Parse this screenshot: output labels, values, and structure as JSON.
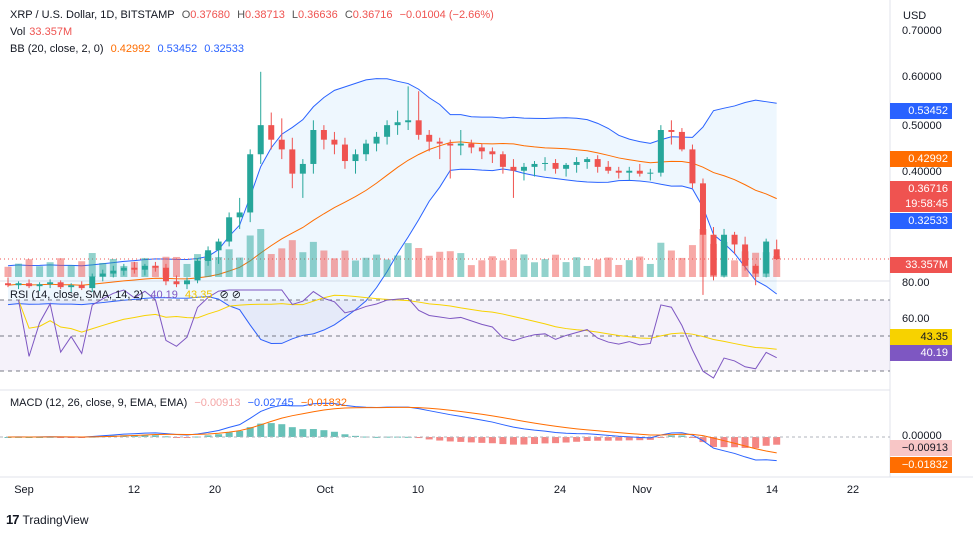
{
  "header": {
    "symbol_line": "XRP / U.S. Dollar, 1D, BITSTAMP",
    "ohlc": {
      "o_label": "O",
      "o": "0.37680",
      "h_label": "H",
      "h": "0.38713",
      "l_label": "L",
      "l": "0.36636",
      "c_label": "C",
      "c": "0.36716",
      "change": "−0.01004 (−2.66%)"
    },
    "vol_label": "Vol",
    "vol_value": "33.357M",
    "bb_label": "BB (20, close, 2, 0)",
    "bb_values": [
      "0.42992",
      "0.53452",
      "0.32533"
    ]
  },
  "rsi_legend": {
    "label": "RSI (14, close, SMA, 14, 2)",
    "values": [
      "40.19",
      "43.35"
    ],
    "extra": "⊘ ⊘"
  },
  "macd_legend": {
    "label": "MACD (12, 26, close, 9, EMA, EMA)",
    "values": [
      "−0.00913",
      "−0.02745",
      "−0.01832"
    ]
  },
  "price_axis": {
    "currency": "USD",
    "ticks": [
      "0.70000",
      "0.60000",
      "0.50000",
      "0.40000"
    ]
  },
  "rsi_axis": {
    "ticks": [
      "80.00",
      "60.00"
    ]
  },
  "macd_axis": {
    "ticks": [
      "0.00000"
    ]
  },
  "badges": {
    "bb_upper": "0.53452",
    "bb_basis": "0.42992",
    "last_price": "0.36716",
    "countdown": "19:58:45",
    "bb_lower": "0.32533",
    "volume": "33.357M",
    "rsi_sma": "43.35",
    "rsi": "40.19",
    "macd_hist": "−0.00913",
    "macd_signal": "−0.01832"
  },
  "x_axis": {
    "labels": [
      "Sep",
      "12",
      "20",
      "Oct",
      "10",
      "24",
      "Nov",
      "14",
      "22"
    ]
  },
  "brand": {
    "logo": "17",
    "name": "TradingView"
  },
  "colors": {
    "up": "#26a69a",
    "down": "#ef5350",
    "bb_band": "#2962ff",
    "bb_basis": "#ff6d00",
    "rsi": "#7e57c2",
    "rsi_sma": "#f7d200"
  },
  "chart_data": {
    "type": "candlestick",
    "title": "XRP / U.S. Dollar, 1D, BITSTAMP",
    "ylim": [
      0.3,
      0.72
    ],
    "candles": [
      [
        0.342,
        0.348,
        0.338,
        0.34
      ],
      [
        0.34,
        0.344,
        0.336,
        0.342
      ],
      [
        0.342,
        0.346,
        0.337,
        0.339
      ],
      [
        0.339,
        0.343,
        0.334,
        0.341
      ],
      [
        0.341,
        0.346,
        0.337,
        0.343
      ],
      [
        0.343,
        0.345,
        0.336,
        0.338
      ],
      [
        0.338,
        0.342,
        0.333,
        0.34
      ],
      [
        0.34,
        0.344,
        0.335,
        0.337
      ],
      [
        0.337,
        0.352,
        0.333,
        0.349
      ],
      [
        0.349,
        0.356,
        0.344,
        0.352
      ],
      [
        0.352,
        0.36,
        0.348,
        0.355
      ],
      [
        0.355,
        0.362,
        0.35,
        0.358
      ],
      [
        0.358,
        0.364,
        0.352,
        0.356
      ],
      [
        0.356,
        0.362,
        0.35,
        0.36
      ],
      [
        0.36,
        0.364,
        0.354,
        0.358
      ],
      [
        0.358,
        0.362,
        0.34,
        0.344
      ],
      [
        0.344,
        0.35,
        0.338,
        0.341
      ],
      [
        0.341,
        0.348,
        0.336,
        0.345
      ],
      [
        0.345,
        0.368,
        0.342,
        0.365
      ],
      [
        0.365,
        0.38,
        0.36,
        0.376
      ],
      [
        0.376,
        0.388,
        0.362,
        0.385
      ],
      [
        0.385,
        0.415,
        0.38,
        0.41
      ],
      [
        0.41,
        0.43,
        0.398,
        0.415
      ],
      [
        0.415,
        0.48,
        0.405,
        0.475
      ],
      [
        0.475,
        0.56,
        0.465,
        0.505
      ],
      [
        0.505,
        0.518,
        0.48,
        0.49
      ],
      [
        0.49,
        0.512,
        0.47,
        0.48
      ],
      [
        0.48,
        0.492,
        0.44,
        0.455
      ],
      [
        0.455,
        0.47,
        0.43,
        0.465
      ],
      [
        0.465,
        0.51,
        0.455,
        0.5
      ],
      [
        0.5,
        0.505,
        0.48,
        0.49
      ],
      [
        0.49,
        0.498,
        0.475,
        0.485
      ],
      [
        0.485,
        0.492,
        0.46,
        0.468
      ],
      [
        0.468,
        0.48,
        0.455,
        0.475
      ],
      [
        0.475,
        0.49,
        0.468,
        0.486
      ],
      [
        0.486,
        0.498,
        0.478,
        0.493
      ],
      [
        0.493,
        0.51,
        0.485,
        0.505
      ],
      [
        0.505,
        0.52,
        0.495,
        0.508
      ],
      [
        0.508,
        0.545,
        0.5,
        0.51
      ],
      [
        0.51,
        0.54,
        0.49,
        0.495
      ],
      [
        0.495,
        0.5,
        0.478,
        0.488
      ],
      [
        0.488,
        0.492,
        0.47,
        0.486
      ],
      [
        0.486,
        0.49,
        0.45,
        0.484
      ],
      [
        0.484,
        0.5,
        0.474,
        0.486
      ],
      [
        0.486,
        0.49,
        0.476,
        0.482
      ],
      [
        0.482,
        0.486,
        0.47,
        0.478
      ],
      [
        0.478,
        0.482,
        0.466,
        0.475
      ],
      [
        0.475,
        0.478,
        0.455,
        0.462
      ],
      [
        0.462,
        0.47,
        0.43,
        0.458
      ],
      [
        0.458,
        0.466,
        0.448,
        0.462
      ],
      [
        0.462,
        0.468,
        0.452,
        0.465
      ],
      [
        0.465,
        0.472,
        0.458,
        0.466
      ],
      [
        0.466,
        0.47,
        0.455,
        0.46
      ],
      [
        0.46,
        0.466,
        0.452,
        0.464
      ],
      [
        0.464,
        0.472,
        0.456,
        0.467
      ],
      [
        0.467,
        0.472,
        0.46,
        0.47
      ],
      [
        0.47,
        0.474,
        0.456,
        0.462
      ],
      [
        0.462,
        0.468,
        0.455,
        0.458
      ],
      [
        0.458,
        0.462,
        0.45,
        0.456
      ],
      [
        0.456,
        0.462,
        0.448,
        0.458
      ],
      [
        0.458,
        0.465,
        0.452,
        0.455
      ],
      [
        0.455,
        0.46,
        0.448,
        0.456
      ],
      [
        0.456,
        0.505,
        0.452,
        0.5
      ],
      [
        0.5,
        0.51,
        0.485,
        0.498
      ],
      [
        0.498,
        0.502,
        0.478,
        0.48
      ],
      [
        0.48,
        0.485,
        0.44,
        0.445
      ],
      [
        0.445,
        0.45,
        0.33,
        0.392
      ],
      [
        0.392,
        0.4,
        0.345,
        0.35
      ],
      [
        0.35,
        0.398,
        0.348,
        0.392
      ],
      [
        0.392,
        0.395,
        0.372,
        0.382
      ],
      [
        0.382,
        0.39,
        0.355,
        0.36
      ],
      [
        0.36,
        0.362,
        0.34,
        0.352
      ],
      [
        0.352,
        0.388,
        0.348,
        0.385
      ],
      [
        0.377,
        0.387,
        0.366,
        0.367
      ]
    ]
  }
}
